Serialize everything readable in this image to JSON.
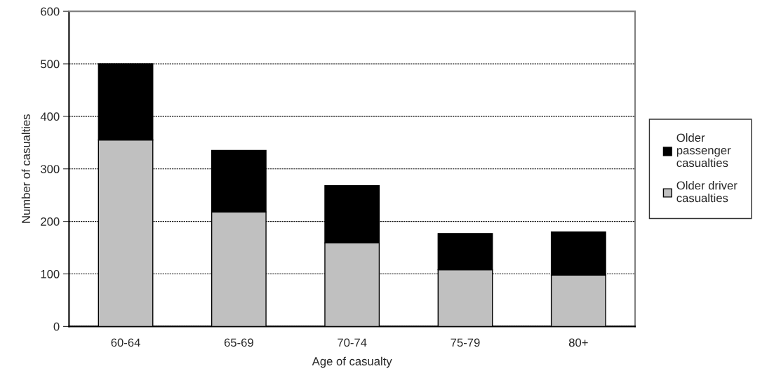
{
  "chart_data": {
    "type": "bar",
    "stacked": true,
    "xlabel": "Age of casualty",
    "ylabel": "Number of casualties",
    "categories": [
      "60-64",
      "65-69",
      "70-74",
      "75-79",
      "80+"
    ],
    "series": [
      {
        "name": "Older driver casualties",
        "color": "#c0c0c0",
        "values": [
          355,
          218,
          159,
          108,
          98
        ]
      },
      {
        "name": "Older passenger casualties",
        "color": "#000000",
        "values": [
          145,
          117,
          109,
          69,
          82
        ]
      }
    ],
    "ylim": [
      0,
      600
    ],
    "yticks": [
      0,
      100,
      200,
      300,
      400,
      500,
      600
    ],
    "grid": "y",
    "legend": "right"
  }
}
